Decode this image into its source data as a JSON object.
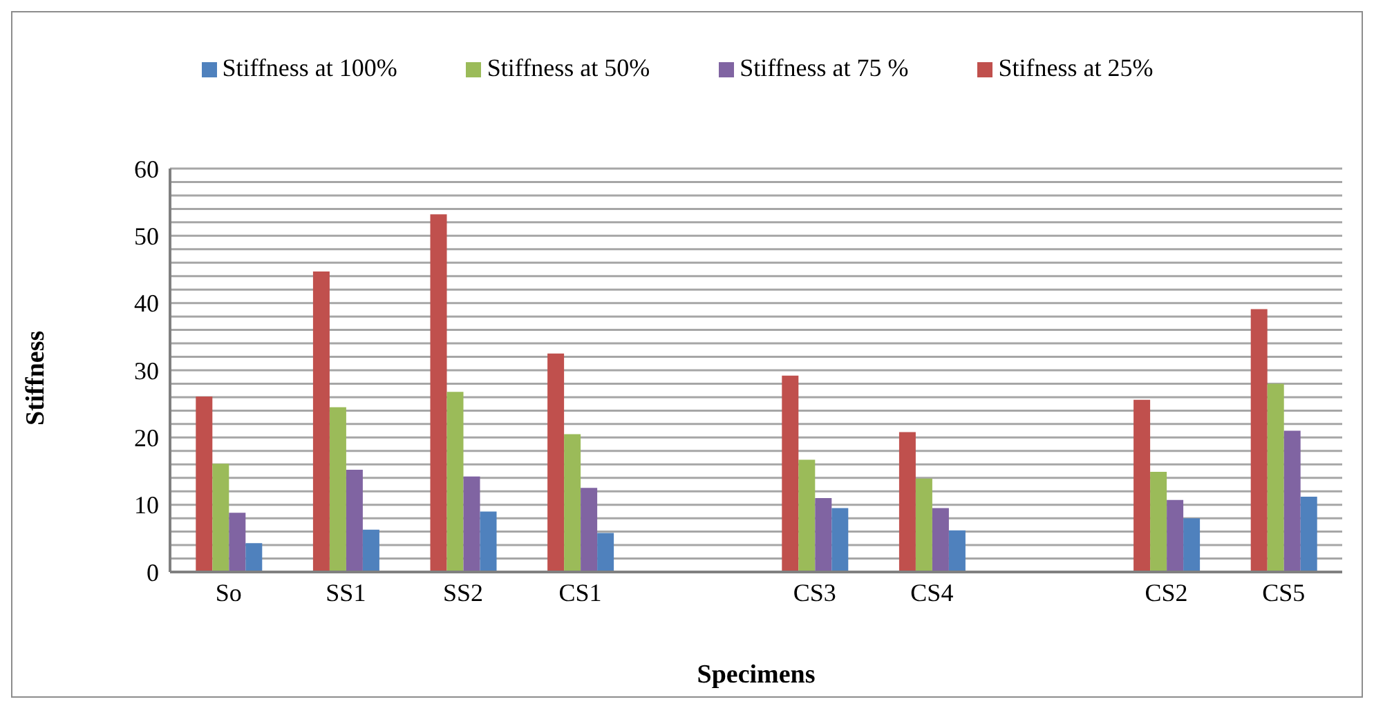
{
  "chart_data": {
    "type": "bar",
    "xlabel": "Specimens",
    "ylabel": "Stiffness",
    "categories": [
      "So",
      "SS1",
      "SS2",
      "CS1",
      null,
      "CS3",
      "CS4",
      null,
      "CS2",
      "CS5"
    ],
    "series": [
      {
        "name": "Stifness at 25%",
        "color": "#c0504d",
        "values": [
          26.1,
          44.7,
          53.2,
          32.5,
          null,
          29.2,
          20.8,
          null,
          25.6,
          39.1
        ]
      },
      {
        "name": "Stiffness at 50%",
        "color": "#9bbb59",
        "values": [
          16.1,
          24.5,
          26.8,
          20.5,
          null,
          16.7,
          13.9,
          null,
          14.9,
          28.0
        ]
      },
      {
        "name": "Stiffness at 75 %",
        "color": "#8064a2",
        "values": [
          8.8,
          15.2,
          14.2,
          12.5,
          null,
          11.0,
          9.5,
          null,
          10.7,
          21.0
        ]
      },
      {
        "name": "Stiffness at 100%",
        "color": "#4f81bd",
        "values": [
          4.3,
          6.3,
          9.0,
          5.8,
          null,
          9.5,
          6.2,
          null,
          8.0,
          11.2
        ]
      }
    ],
    "ylim": [
      0,
      60
    ],
    "yticks": [
      0,
      {
        "value": 2,
        "label": null
      },
      {
        "value": 4,
        "label": null
      },
      {
        "value": 6,
        "label": null
      },
      {
        "value": 8,
        "label": null
      },
      10,
      {
        "value": 12,
        "label": null
      },
      {
        "value": 14,
        "label": null
      },
      {
        "value": 16,
        "label": null
      },
      {
        "value": 18,
        "label": null
      },
      20,
      {
        "value": 22,
        "label": null
      },
      {
        "value": 24,
        "label": null
      },
      {
        "value": 26,
        "label": null
      },
      {
        "value": 28,
        "label": null
      },
      30,
      {
        "value": 32,
        "label": null
      },
      {
        "value": 34,
        "label": null
      },
      {
        "value": 36,
        "label": null
      },
      {
        "value": 38,
        "label": null
      },
      40,
      {
        "value": 42,
        "label": null
      },
      {
        "value": 44,
        "label": null
      },
      {
        "value": 46,
        "label": null
      },
      {
        "value": 48,
        "label": null
      },
      50,
      {
        "value": 52,
        "label": null
      },
      {
        "value": 54,
        "label": null
      },
      {
        "value": 56,
        "label": null
      },
      {
        "value": 58,
        "label": null
      },
      60
    ],
    "grid": "y",
    "legend": "top"
  }
}
